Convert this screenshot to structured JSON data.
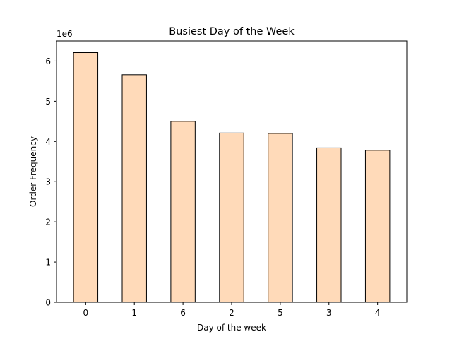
{
  "chart_data": {
    "type": "bar",
    "title": "Busiest Day of the Week",
    "xlabel": "Day of the week",
    "ylabel": "Order Frequency",
    "y_offset_label": "1e6",
    "categories": [
      "0",
      "1",
      "6",
      "2",
      "5",
      "3",
      "4"
    ],
    "values": [
      6210000,
      5660000,
      4500000,
      4210000,
      4200000,
      3840000,
      3780000
    ],
    "ylim": [
      0,
      6500000
    ],
    "yticks": [
      0,
      1000000,
      2000000,
      3000000,
      4000000,
      5000000,
      6000000
    ],
    "ytick_labels": [
      "0",
      "1",
      "2",
      "3",
      "4",
      "5",
      "6"
    ],
    "grid": false,
    "bar_color": "#ffdab9",
    "edge_color": "#000000"
  }
}
